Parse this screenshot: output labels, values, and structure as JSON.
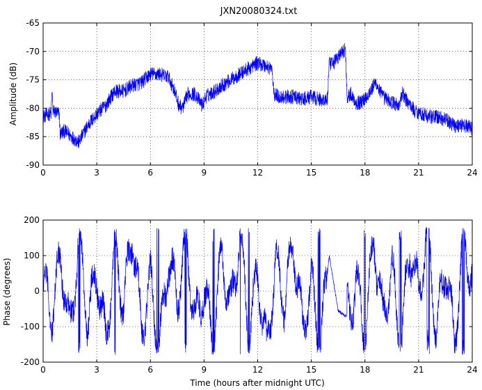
{
  "figure": {
    "title": "JXN20080324.txt"
  },
  "chart_data": [
    {
      "type": "line",
      "title": "JXN20080324.txt",
      "xlabel": "",
      "ylabel": "Amplitude (dB)",
      "xlim": [
        0,
        24
      ],
      "ylim": [
        -90,
        -65
      ],
      "xticks": [
        0,
        3,
        6,
        9,
        12,
        15,
        18,
        21,
        24
      ],
      "yticks": [
        -90,
        -85,
        -80,
        -75,
        -70,
        -65
      ],
      "grid": true,
      "series_color": "#0000ff",
      "x": [
        0,
        0.3,
        0.45,
        0.5,
        0.55,
        0.9,
        0.95,
        1.2,
        1.6,
        2.0,
        2.5,
        3.0,
        3.5,
        4.0,
        4.5,
        5.0,
        5.5,
        6.0,
        6.5,
        7.0,
        7.3,
        7.6,
        7.8,
        8.1,
        8.5,
        8.9,
        9.1,
        9.3,
        9.6,
        10.0,
        10.5,
        11.0,
        11.5,
        12.0,
        12.4,
        12.8,
        12.9,
        13.2,
        13.6,
        14.0,
        14.5,
        15.0,
        15.5,
        15.9,
        16.0,
        16.1,
        16.5,
        16.9,
        17.0,
        17.2,
        17.5,
        17.8,
        18.2,
        18.6,
        19.0,
        19.5,
        19.9,
        20.1,
        20.3,
        20.8,
        21.2,
        21.6,
        22.0,
        22.5,
        23.0,
        23.5,
        24.0
      ],
      "y": [
        -81.5,
        -81,
        -81,
        -77,
        -80.5,
        -81,
        -84.5,
        -84,
        -85,
        -86,
        -83,
        -81,
        -79.5,
        -77,
        -77,
        -76,
        -75.5,
        -74,
        -74,
        -74.5,
        -76.5,
        -79.5,
        -80,
        -77.5,
        -77.5,
        -79.5,
        -78,
        -77.5,
        -77,
        -76,
        -75,
        -74,
        -73,
        -72,
        -72.5,
        -73,
        -77.5,
        -78,
        -78,
        -78,
        -78.5,
        -78,
        -78.5,
        -78.5,
        -72,
        -72.5,
        -71,
        -69.5,
        -78,
        -77.5,
        -79,
        -79,
        -77.5,
        -75.5,
        -78,
        -79,
        -79.5,
        -77.5,
        -78.5,
        -80.5,
        -81,
        -81.5,
        -81.5,
        -82,
        -83,
        -83,
        -83.5
      ]
    },
    {
      "type": "line",
      "title": "",
      "xlabel": "Time (hours after midnight UTC)",
      "ylabel": "Phase (degrees)",
      "xlim": [
        0,
        24
      ],
      "ylim": [
        -200,
        200
      ],
      "xticks": [
        0,
        3,
        6,
        9,
        12,
        15,
        18,
        21,
        24
      ],
      "yticks": [
        -200,
        -100,
        0,
        100,
        200
      ],
      "grid": true,
      "series_color": "#0000ff",
      "wraps": [
        -180,
        180
      ],
      "x": [
        0,
        0.5,
        1.0,
        1.5,
        2.0,
        2.5,
        3.0,
        3.5,
        4.0,
        4.5,
        5.0,
        5.5,
        6.0,
        6.5,
        7.0,
        7.5,
        8.0,
        8.5,
        9.0,
        9.5,
        10.0,
        10.5,
        11.0,
        11.5,
        12.0,
        12.5,
        13.0,
        13.5,
        14.0,
        14.5,
        15.0,
        15.5,
        16.0,
        16.5,
        16.9,
        17.2,
        17.5,
        18.0,
        18.5,
        19.0,
        19.5,
        20.0,
        20.5,
        21.0,
        21.5,
        22.0,
        22.5,
        23.0,
        23.5,
        24.0
      ],
      "y": [
        20,
        -60,
        100,
        -120,
        150,
        -80,
        60,
        -150,
        120,
        -40,
        170,
        -110,
        30,
        -160,
        90,
        -20,
        140,
        -90,
        10,
        -140,
        110,
        -60,
        160,
        -120,
        50,
        -170,
        80,
        -30,
        130,
        -100,
        20,
        -150,
        100,
        -55,
        -70,
        -60,
        40,
        -130,
        150,
        -80,
        60,
        -160,
        120,
        -10,
        170,
        -120,
        80,
        -140,
        140,
        40
      ]
    }
  ]
}
